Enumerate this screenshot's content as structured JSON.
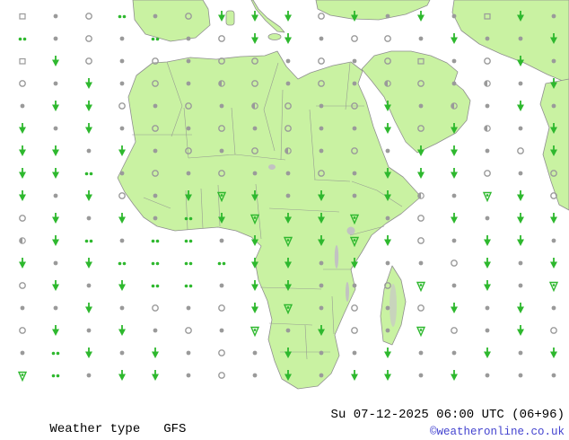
{
  "colors": {
    "ocean": "#ffffff",
    "land": "#c9f2a2",
    "border": "#8f8f8f",
    "lake": "#c2c2c2",
    "terrain": "#c8c8c8",
    "symbol_green": "#2eb82e",
    "symbol_gray": "#9a9a9a",
    "text": "#000000",
    "copyright": "#4343cf"
  },
  "map": {
    "region": "Africa",
    "symbols": {
      "v": {
        "name": "shower-arrow",
        "color": "green"
      },
      "t": {
        "name": "shower-triangle",
        "color": "green"
      },
      "g": {
        "name": "drizzle-dots",
        "color": "green"
      },
      "d": {
        "name": "cloud-dot",
        "color": "gray"
      },
      "o": {
        "name": "cloud-ring",
        "color": "gray"
      },
      "h": {
        "name": "cloud-half",
        "color": "gray"
      },
      "q": {
        "name": "fog-square",
        "color": "gray"
      }
    },
    "grid_rows": [
      "qdogdovvvovdvdqvd",
      "gdodgdovvdoodvddv",
      "qvododoododoqdovd",
      "odvdodhododhodhdv",
      "dvvododhodovdhdvd",
      "vdvdodododdvovhdv",
      "vvdvdodohdodvvdov",
      "vvgdododdodvvvodo",
      "vdvodvtvdvdvhdtvo",
      "ovdvdgvtvvtdovdvv",
      "hvgdggdvtvtvodvvd",
      "vdvggggvvdvddovdv",
      "ovdvggdvvddotdvdt",
      "ddvdodovtdodovdvd",
      "ovdvdodtdvodtodvo",
      "dgvdvdodvddvddvdv",
      "tgdvvdodvdvvdvddd"
    ]
  },
  "footer": {
    "product_label": "Weather type",
    "model": "GFS",
    "valid_time": "Su 07-12-2025 06:00 UTC (06+96)",
    "copyright": "©weatheronline.co.uk"
  }
}
